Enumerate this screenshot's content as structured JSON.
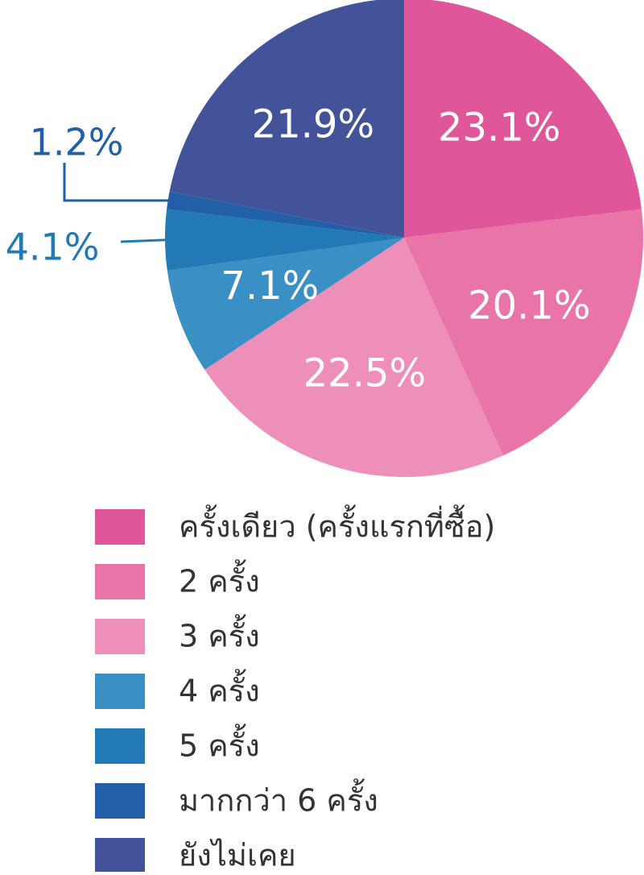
{
  "chart_data": {
    "type": "pie",
    "categories": [
      "ครั้งเดียว (ครั้งแรกที่ซื้อ)",
      "2 ครั้ง",
      "3 ครั้ง",
      "4 ครั้ง",
      "5 ครั้ง",
      "มากกว่า 6 ครั้ง",
      "ยังไม่เคย"
    ],
    "values": [
      23.1,
      20.1,
      22.5,
      7.1,
      4.1,
      1.2,
      21.9
    ],
    "value_labels": [
      "23.1%",
      "20.1%",
      "22.5%",
      "7.1%",
      "4.1%",
      "1.2%",
      "21.9%"
    ],
    "colors": [
      "#e0569a",
      "#e874a8",
      "#ee8fba",
      "#3a90c5",
      "#2179b5",
      "#2160a8",
      "#43539a"
    ]
  }
}
